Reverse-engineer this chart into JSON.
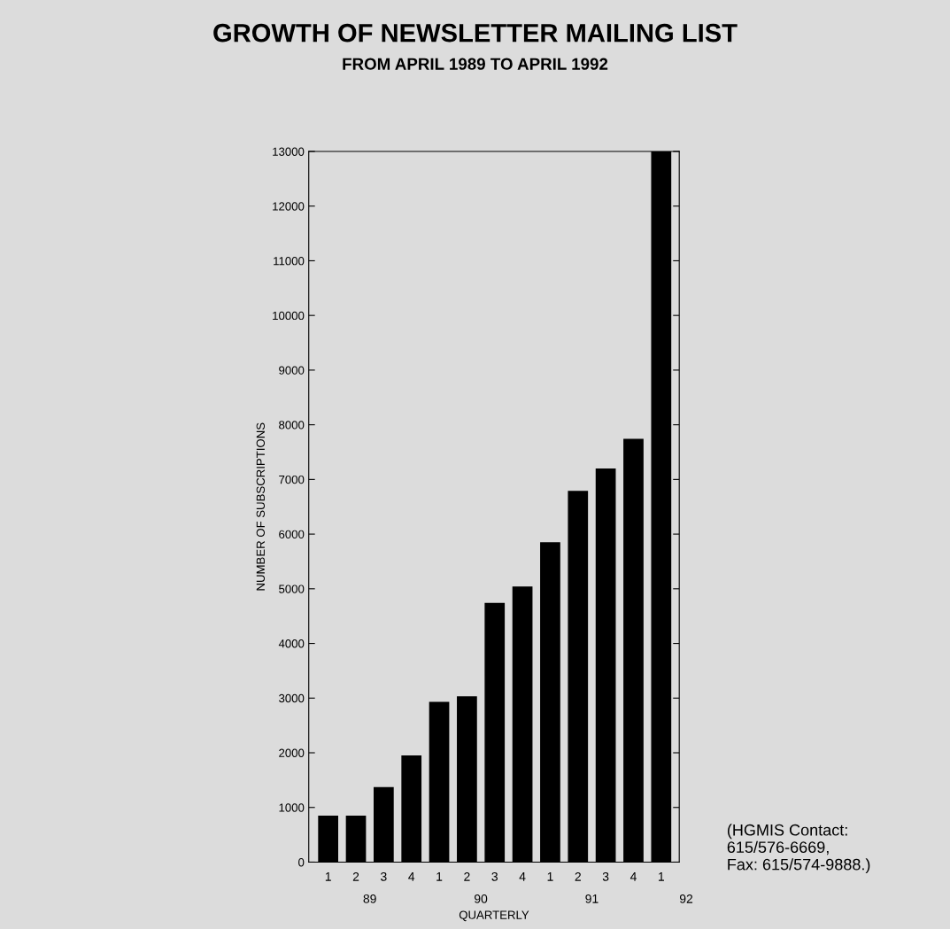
{
  "chart_data": {
    "type": "bar",
    "title": "GROWTH OF NEWSLETTER MAILING LIST",
    "subtitle": "FROM APRIL 1989 TO APRIL 1992",
    "xlabel": "QUARTERLY",
    "ylabel": "NUMBER OF SUBSCRIPTIONS",
    "categories": [
      "1",
      "2",
      "3",
      "4",
      "1",
      "2",
      "3",
      "4",
      "1",
      "2",
      "3",
      "4",
      "1"
    ],
    "values": [
      840,
      840,
      1360,
      1940,
      2920,
      3020,
      4730,
      5030,
      5840,
      6780,
      7190,
      7730,
      13000
    ],
    "color": "#000000",
    "ylim": [
      0,
      13000
    ],
    "yticks": [
      0,
      1000,
      2000,
      3000,
      4000,
      5000,
      6000,
      7000,
      8000,
      9000,
      10000,
      11000,
      12000,
      13000
    ],
    "grid": false,
    "legend": false,
    "annotations": [
      "89",
      "90",
      "91",
      "92",
      "(HGMIS Contact:\n615/576-6669,\nFax: 615/574-9888.)"
    ]
  }
}
